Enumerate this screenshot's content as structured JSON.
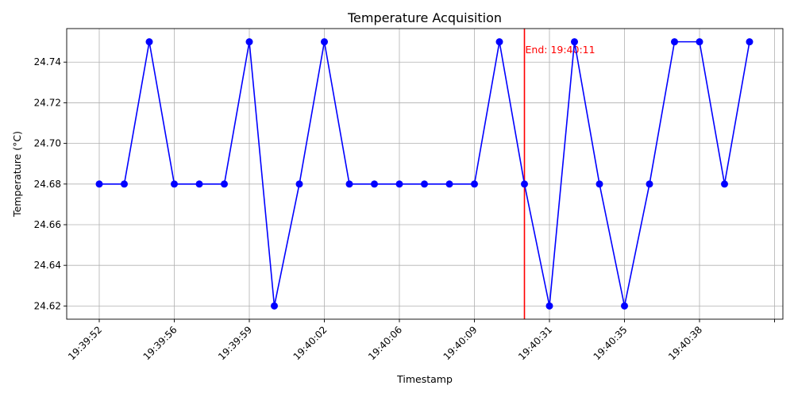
{
  "chart_data": {
    "type": "line",
    "title": "Temperature Acquisition",
    "xlabel": "Timestamp",
    "ylabel": "Temperature (°C)",
    "grid": true,
    "x_tick_labels": [
      "19:39:52",
      "19:39:56",
      "19:39:59",
      "19:40:02",
      "19:40:06",
      "19:40:09",
      "19:40:31",
      "19:40:35",
      "19:40:38",
      ""
    ],
    "y_ticks": [
      24.62,
      24.64,
      24.66,
      24.68,
      24.7,
      24.72,
      24.74
    ],
    "ylim": [
      24.6135,
      24.7565
    ],
    "series": [
      {
        "color": "#0000ff",
        "marker": "circle",
        "values": [
          24.68,
          24.68,
          24.75,
          24.68,
          24.68,
          24.68,
          24.75,
          24.62,
          24.68,
          24.75,
          24.68,
          24.68,
          24.68,
          24.68,
          24.68,
          24.68,
          24.75,
          24.68,
          24.62,
          24.75,
          24.68,
          24.62,
          24.68,
          24.75,
          24.75,
          24.68,
          24.75
        ]
      }
    ],
    "vline": {
      "at_index": 17,
      "color": "#ff0000",
      "label": "End: 19:40:11"
    }
  }
}
